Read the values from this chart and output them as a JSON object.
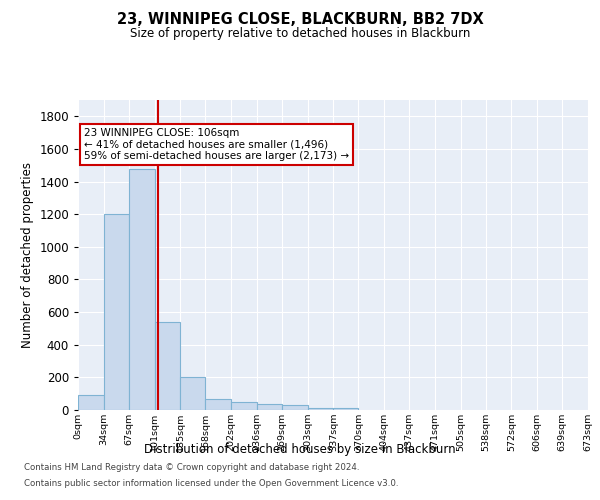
{
  "title": "23, WINNIPEG CLOSE, BLACKBURN, BB2 7DX",
  "subtitle": "Size of property relative to detached houses in Blackburn",
  "xlabel": "Distribution of detached houses by size in Blackburn",
  "ylabel": "Number of detached properties",
  "bar_color": "#c9d9ed",
  "bar_edge_color": "#7fb3d3",
  "background_color": "#e8eef7",
  "grid_color": "#ffffff",
  "bin_labels": [
    "0sqm",
    "34sqm",
    "67sqm",
    "101sqm",
    "135sqm",
    "168sqm",
    "202sqm",
    "236sqm",
    "269sqm",
    "303sqm",
    "337sqm",
    "370sqm",
    "404sqm",
    "437sqm",
    "471sqm",
    "505sqm",
    "538sqm",
    "572sqm",
    "606sqm",
    "639sqm",
    "673sqm"
  ],
  "bar_values": [
    90,
    1200,
    1475,
    540,
    205,
    68,
    48,
    35,
    28,
    15,
    10,
    0,
    0,
    0,
    0,
    0,
    0,
    0,
    0,
    0
  ],
  "bin_edges": [
    0,
    34,
    67,
    101,
    135,
    168,
    202,
    236,
    269,
    303,
    337,
    370,
    404,
    437,
    471,
    505,
    538,
    572,
    606,
    639,
    673
  ],
  "ylim": [
    0,
    1900
  ],
  "yticks": [
    0,
    200,
    400,
    600,
    800,
    1000,
    1200,
    1400,
    1600,
    1800
  ],
  "property_line_x": 106,
  "annotation_line1": "23 WINNIPEG CLOSE: 106sqm",
  "annotation_line2": "← 41% of detached houses are smaller (1,496)",
  "annotation_line3": "59% of semi-detached houses are larger (2,173) →",
  "annotation_box_color": "#ffffff",
  "annotation_border_color": "#cc0000",
  "vline_color": "#cc0000",
  "footer_line1": "Contains HM Land Registry data © Crown copyright and database right 2024.",
  "footer_line2": "Contains public sector information licensed under the Open Government Licence v3.0."
}
